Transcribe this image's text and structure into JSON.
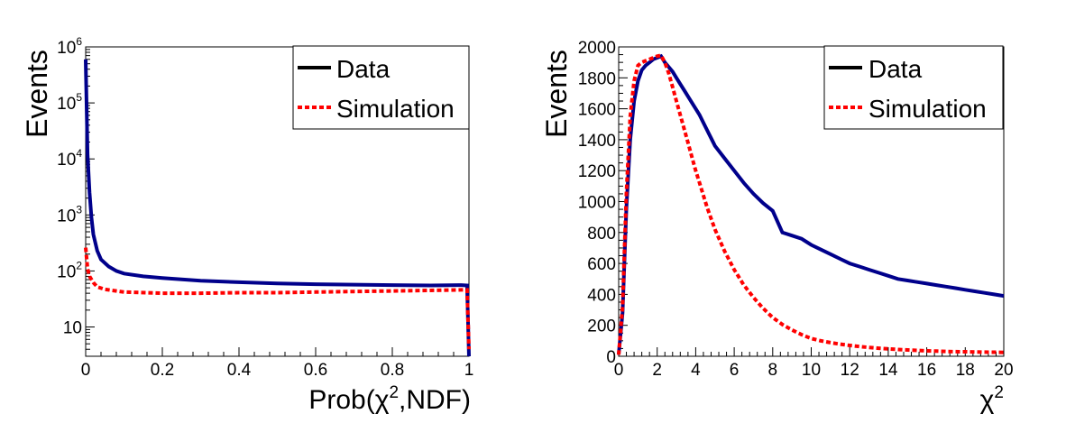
{
  "chart_data": [
    {
      "type": "line",
      "ylabel": "Events",
      "xlabel": "Prob(χ²,NDF)",
      "xlabel_main": "Prob(χ",
      "xlabel_sup": "2",
      "xlabel_tail": ",NDF)",
      "xlim": [
        0,
        1
      ],
      "ylim": [
        3,
        1000000
      ],
      "yscale": "log",
      "grid": false,
      "legend_position": "top-right",
      "xticks": [
        "0",
        "0.2",
        "0.4",
        "0.6",
        "0.8",
        "1"
      ],
      "yticks": [
        {
          "base": "10",
          "exp": "6"
        },
        {
          "base": "10",
          "exp": "5"
        },
        {
          "base": "10",
          "exp": "4"
        },
        {
          "base": "10",
          "exp": "3"
        },
        {
          "base": "10",
          "exp": "2"
        },
        {
          "base": "10",
          "exp": ""
        }
      ],
      "series": [
        {
          "name": "Data",
          "legend_color": "#000000",
          "color": "#00008b",
          "x": [
            0.0,
            0.005,
            0.01,
            0.015,
            0.02,
            0.03,
            0.04,
            0.06,
            0.08,
            0.1,
            0.15,
            0.2,
            0.3,
            0.4,
            0.5,
            0.6,
            0.7,
            0.8,
            0.9,
            0.98,
            0.995,
            1.0
          ],
          "y": [
            600000,
            12000,
            2500,
            900,
            450,
            230,
            160,
            120,
            100,
            90,
            80,
            75,
            67,
            63,
            60,
            58,
            57,
            56,
            55,
            56,
            55,
            3
          ]
        },
        {
          "name": "Simulation",
          "legend_color": "#ff0000",
          "color": "#ff0000",
          "x": [
            0.0,
            0.005,
            0.01,
            0.02,
            0.03,
            0.05,
            0.08,
            0.1,
            0.2,
            0.3,
            0.4,
            0.5,
            0.6,
            0.7,
            0.8,
            0.9,
            0.98,
            0.995,
            1.0
          ],
          "y": [
            260,
            110,
            80,
            62,
            52,
            47,
            44,
            42,
            40,
            40,
            41,
            41,
            42,
            43,
            44,
            45,
            46,
            46,
            4
          ]
        }
      ]
    },
    {
      "type": "line",
      "ylabel": "Events",
      "xlabel": "χ²",
      "xlabel_main": "χ",
      "xlabel_sup": "2",
      "xlim": [
        0,
        20
      ],
      "ylim": [
        0,
        2000
      ],
      "yscale": "linear",
      "grid": false,
      "legend_position": "top-right",
      "xticks": [
        "0",
        "2",
        "4",
        "6",
        "8",
        "10",
        "12",
        "14",
        "16",
        "18",
        "20"
      ],
      "yticks": [
        "0",
        "200",
        "400",
        "600",
        "800",
        "1000",
        "1200",
        "1400",
        "1600",
        "1800",
        "2000"
      ],
      "series": [
        {
          "name": "Data",
          "legend_color": "#000000",
          "color": "#00008b",
          "x": [
            0.0,
            0.2,
            0.4,
            0.6,
            0.8,
            1.0,
            1.2,
            1.4,
            1.6,
            1.8,
            2.0,
            2.2,
            2.4,
            2.6,
            2.8,
            3.0,
            3.2,
            3.4,
            3.6,
            3.8,
            4.0,
            4.2,
            4.4,
            4.6,
            4.8,
            5.0,
            5.5,
            6.0,
            6.5,
            7.0,
            7.5,
            8.0,
            8.5,
            9.0,
            9.5,
            10.0,
            10.5,
            11.0,
            11.5,
            12.0,
            12.5,
            13.0,
            13.5,
            14.0,
            14.5,
            15.0,
            15.5,
            16.0,
            16.5,
            17.0,
            17.5,
            18.0,
            18.5,
            19.0,
            19.5,
            20.0
          ],
          "y": [
            10,
            280,
            950,
            1400,
            1650,
            1780,
            1850,
            1880,
            1900,
            1920,
            1930,
            1940,
            1900,
            1870,
            1840,
            1800,
            1760,
            1720,
            1680,
            1640,
            1600,
            1560,
            1510,
            1460,
            1410,
            1360,
            1280,
            1200,
            1120,
            1050,
            990,
            940,
            800,
            780,
            760,
            720,
            690,
            660,
            630,
            600,
            580,
            560,
            540,
            520,
            500,
            490,
            480,
            470,
            460,
            450,
            440,
            430,
            420,
            410,
            400,
            390
          ]
        },
        {
          "name": "Simulation",
          "legend_color": "#ff0000",
          "color": "#ff0000",
          "x": [
            0.0,
            0.2,
            0.4,
            0.6,
            0.8,
            1.0,
            1.2,
            1.4,
            1.6,
            1.8,
            2.0,
            2.2,
            2.4,
            2.6,
            2.8,
            3.0,
            3.2,
            3.4,
            3.6,
            3.8,
            4.0,
            4.2,
            4.4,
            4.6,
            4.8,
            5.0,
            5.5,
            6.0,
            6.5,
            7.0,
            7.5,
            8.0,
            8.5,
            9.0,
            9.5,
            10.0,
            10.5,
            11.0,
            11.5,
            12.0,
            12.5,
            13.0,
            13.5,
            14.0,
            14.5,
            15.0,
            15.5,
            16.0,
            16.5,
            17.0,
            17.5,
            18.0,
            18.5,
            19.0,
            19.5,
            20.0
          ],
          "y": [
            10,
            320,
            1050,
            1550,
            1780,
            1880,
            1900,
            1910,
            1920,
            1930,
            1940,
            1945,
            1900,
            1830,
            1740,
            1650,
            1560,
            1470,
            1380,
            1290,
            1200,
            1120,
            1040,
            960,
            890,
            820,
            680,
            560,
            460,
            380,
            310,
            250,
            205,
            170,
            140,
            115,
            100,
            88,
            78,
            70,
            63,
            57,
            52,
            48,
            44,
            41,
            38,
            35,
            33,
            31,
            30,
            29,
            28,
            27,
            26,
            25
          ]
        }
      ]
    }
  ]
}
